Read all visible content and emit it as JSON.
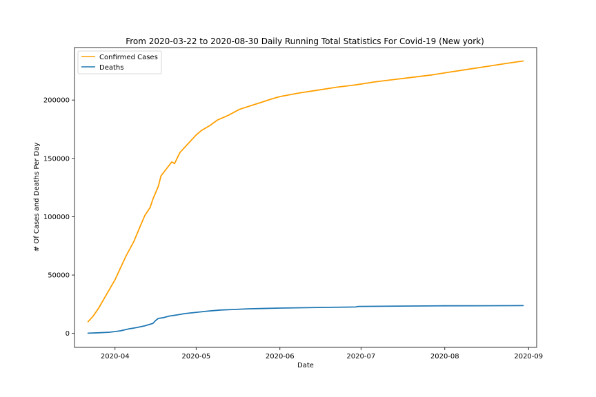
{
  "chart_data": {
    "type": "line",
    "title": "From 2020-03-22 to 2020-08-30 Daily Running Total Statistics For Covid-19 (New york)",
    "xlabel": "Date",
    "ylabel": "# Of Cases and Deaths Per Day",
    "xlim": [
      "2020-03-17",
      "2020-09-04"
    ],
    "ylim": [
      -12000,
      245000
    ],
    "x_ticks": [
      "2020-04",
      "2020-05",
      "2020-06",
      "2020-07",
      "2020-08",
      "2020-09"
    ],
    "y_ticks": [
      0,
      50000,
      100000,
      150000,
      200000
    ],
    "grid": false,
    "legend_position": "upper left",
    "series": [
      {
        "name": "Confirmed Cases",
        "color": "#ff9f00",
        "points": [
          [
            "2020-03-22",
            10000
          ],
          [
            "2020-03-24",
            15000
          ],
          [
            "2020-03-26",
            22000
          ],
          [
            "2020-03-28",
            30000
          ],
          [
            "2020-03-30",
            38000
          ],
          [
            "2020-04-01",
            46000
          ],
          [
            "2020-04-03",
            56000
          ],
          [
            "2020-04-05",
            66000
          ],
          [
            "2020-04-08",
            79000
          ],
          [
            "2020-04-10",
            90000
          ],
          [
            "2020-04-12",
            101000
          ],
          [
            "2020-04-14",
            108000
          ],
          [
            "2020-04-15",
            115000
          ],
          [
            "2020-04-17",
            126000
          ],
          [
            "2020-04-18",
            135000
          ],
          [
            "2020-04-20",
            141000
          ],
          [
            "2020-04-22",
            147000
          ],
          [
            "2020-04-23",
            145500
          ],
          [
            "2020-04-25",
            155000
          ],
          [
            "2020-04-27",
            160000
          ],
          [
            "2020-04-29",
            165000
          ],
          [
            "2020-05-01",
            170000
          ],
          [
            "2020-05-03",
            174000
          ],
          [
            "2020-05-06",
            178000
          ],
          [
            "2020-05-09",
            183000
          ],
          [
            "2020-05-13",
            187000
          ],
          [
            "2020-05-17",
            192000
          ],
          [
            "2020-05-21",
            195000
          ],
          [
            "2020-05-25",
            198000
          ],
          [
            "2020-05-29",
            201000
          ],
          [
            "2020-06-01",
            203000
          ],
          [
            "2020-06-08",
            206000
          ],
          [
            "2020-06-15",
            208500
          ],
          [
            "2020-06-22",
            211000
          ],
          [
            "2020-06-29",
            213000
          ],
          [
            "2020-07-06",
            215500
          ],
          [
            "2020-07-13",
            217500
          ],
          [
            "2020-07-20",
            219500
          ],
          [
            "2020-07-27",
            221500
          ],
          [
            "2020-08-03",
            224000
          ],
          [
            "2020-08-10",
            226500
          ],
          [
            "2020-08-17",
            229000
          ],
          [
            "2020-08-24",
            231500
          ],
          [
            "2020-08-30",
            233500
          ]
        ]
      },
      {
        "name": "Deaths",
        "color": "#1f77b4",
        "points": [
          [
            "2020-03-22",
            200
          ],
          [
            "2020-03-26",
            500
          ],
          [
            "2020-03-30",
            1000
          ],
          [
            "2020-04-03",
            2200
          ],
          [
            "2020-04-06",
            3800
          ],
          [
            "2020-04-09",
            5000
          ],
          [
            "2020-04-12",
            6500
          ],
          [
            "2020-04-15",
            8500
          ],
          [
            "2020-04-16",
            11000
          ],
          [
            "2020-04-17",
            12800
          ],
          [
            "2020-04-19",
            13500
          ],
          [
            "2020-04-21",
            14800
          ],
          [
            "2020-04-24",
            15800
          ],
          [
            "2020-04-27",
            17000
          ],
          [
            "2020-04-30",
            17800
          ],
          [
            "2020-05-05",
            19000
          ],
          [
            "2020-05-10",
            20000
          ],
          [
            "2020-05-15",
            20500
          ],
          [
            "2020-05-20",
            21000
          ],
          [
            "2020-06-01",
            21700
          ],
          [
            "2020-06-15",
            22200
          ],
          [
            "2020-06-29",
            22600
          ],
          [
            "2020-06-30",
            23100
          ],
          [
            "2020-07-15",
            23400
          ],
          [
            "2020-07-31",
            23600
          ],
          [
            "2020-08-15",
            23700
          ],
          [
            "2020-08-30",
            23800
          ]
        ]
      }
    ]
  }
}
